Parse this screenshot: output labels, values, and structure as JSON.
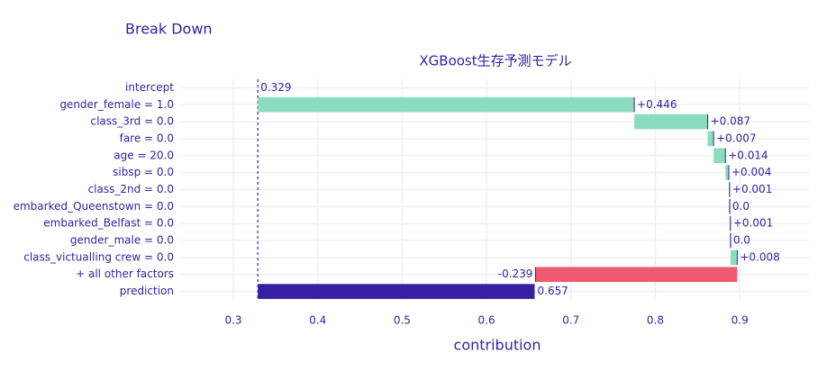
{
  "chart_data": {
    "type": "waterfall",
    "title": "Break Down",
    "subtitle": "XGBoost生存予測モデル",
    "x_label": "contribution",
    "categories": [
      "intercept",
      "gender_female = 1.0",
      "class_3rd = 0.0",
      "fare = 0.0",
      "age = 20.0",
      "sibsp = 0.0",
      "class_2nd = 0.0",
      "embarked_Queenstown = 0.0",
      "embarked_Belfast = 0.0",
      "gender_male = 0.0",
      "class_victualling crew = 0.0",
      "+ all other factors",
      "prediction"
    ],
    "values": [
      0.329,
      0.446,
      0.087,
      0.007,
      0.014,
      0.004,
      0.001,
      0.0,
      0.001,
      0.0,
      0.008,
      -0.239,
      0.657
    ],
    "value_labels": [
      "0.329",
      "+0.446",
      "+0.087",
      "+0.007",
      "+0.014",
      "+0.004",
      "+0.001",
      "0.0",
      "+0.001",
      "0.0",
      "+0.008",
      "-0.239",
      "0.657"
    ],
    "colors": {
      "positive": "#8bdcbe",
      "negative": "#f05a71",
      "prediction": "#371ea3"
    },
    "xlim": [
      0.237,
      0.982
    ],
    "xticks": [
      0.3,
      0.4,
      0.5,
      0.6,
      0.7,
      0.8,
      0.9
    ],
    "grid": true
  }
}
